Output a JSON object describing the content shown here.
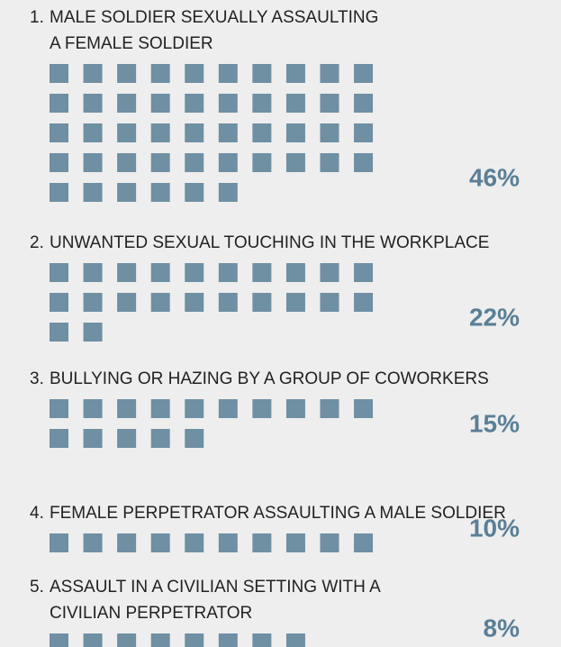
{
  "chart_data": {
    "type": "pictogram",
    "ranks": [
      "1.",
      "2.",
      "3.",
      "4.",
      "5."
    ],
    "categories": [
      [
        "MALE SOLDIER SEXUALLY ASSAULTING",
        "A FEMALE SOLDIER"
      ],
      [
        "UNWANTED SEXUAL TOUCHING IN THE WORKPLACE"
      ],
      [
        "BULLYING OR HAZING BY A GROUP OF COWORKERS"
      ],
      [
        "FEMALE PERPETRATOR ASSAULTING A MALE SOLDIER"
      ],
      [
        "ASSAULT IN A CIVILIAN SETTING WITH A",
        "CIVILIAN PERPETRATOR"
      ]
    ],
    "values": [
      46,
      22,
      15,
      10,
      8
    ],
    "value_labels": [
      "46%",
      "22%",
      "15%",
      "10%",
      "8%"
    ],
    "color": "#6f8fa3"
  }
}
